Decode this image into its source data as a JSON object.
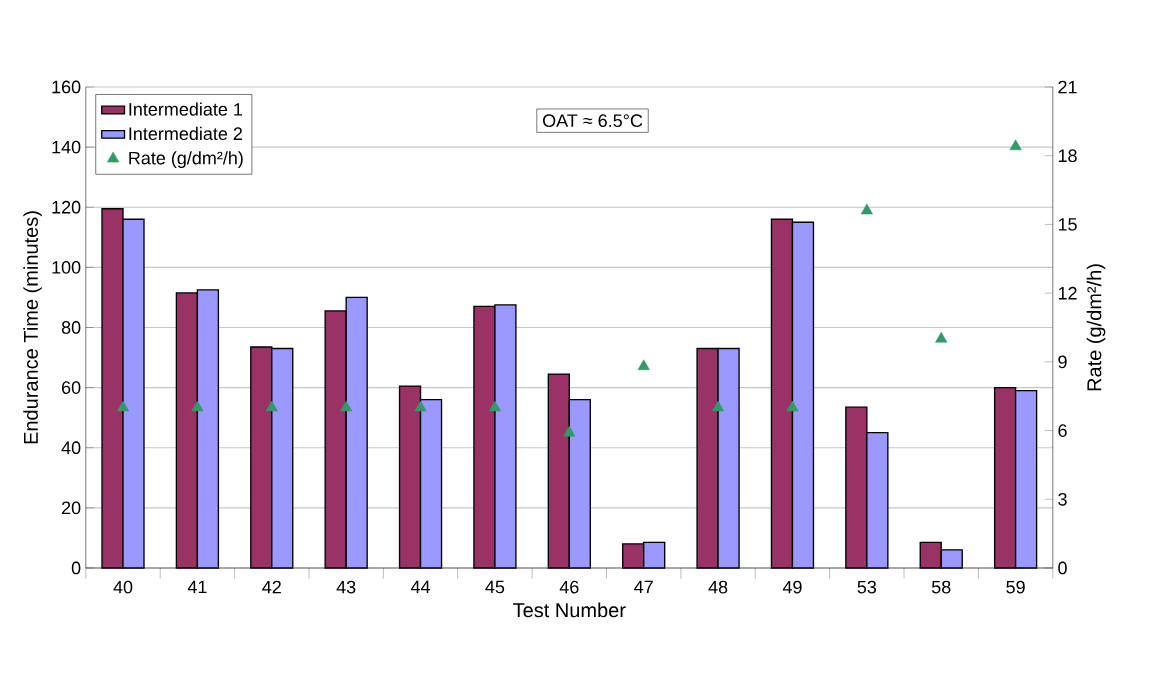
{
  "chart_data": {
    "type": "bar",
    "xlabel": "Test Number",
    "ylabel": "Endurance Time (minutes)",
    "y2label": "Rate (g/dm²/h)",
    "categories": [
      "40",
      "41",
      "42",
      "43",
      "44",
      "45",
      "46",
      "47",
      "48",
      "49",
      "53",
      "58",
      "59"
    ],
    "series": [
      {
        "name": "Intermediate 1",
        "color": "#993366",
        "values": [
          119.5,
          91.5,
          73.5,
          85.5,
          60.5,
          87,
          64.5,
          8,
          73,
          116,
          53.5,
          8.5,
          60
        ]
      },
      {
        "name": "Intermediate 2",
        "color": "#9999ff",
        "values": [
          116,
          92.5,
          73,
          90,
          56,
          87.5,
          56,
          8.5,
          73,
          115,
          45,
          6,
          59
        ]
      },
      {
        "name": "Rate (g/dm²/h)",
        "type": "scatter",
        "axis": "y2",
        "marker": "triangle",
        "color": "#339966",
        "values": [
          7,
          7,
          7,
          7,
          7,
          7,
          5.9,
          8.8,
          7,
          7,
          15.6,
          10,
          18.4
        ]
      }
    ],
    "ylim": [
      0,
      160
    ],
    "yticks": [
      0,
      20,
      40,
      60,
      80,
      100,
      120,
      140,
      160
    ],
    "y2lim": [
      0,
      21
    ],
    "y2ticks": [
      0,
      3,
      6,
      9,
      12,
      15,
      18,
      21
    ],
    "grid": "y",
    "legend": "top left",
    "annotations": [
      "OAT ≈ 6.5°C"
    ]
  }
}
